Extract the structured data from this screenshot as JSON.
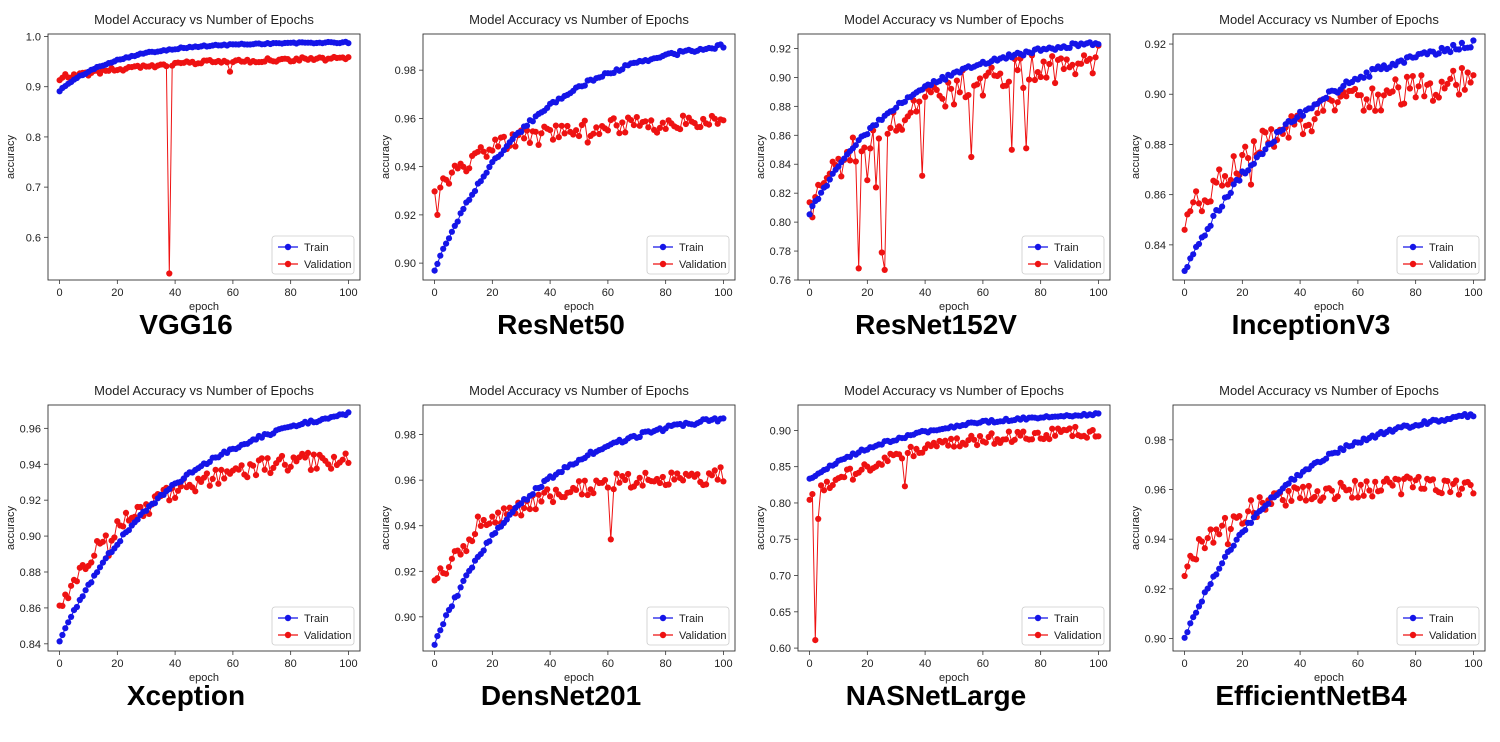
{
  "chart_data": [
    {
      "type": "line",
      "model_name": "VGG16",
      "title": "Model Accuracy vs Number of Epochs",
      "xlabel": "epoch",
      "ylabel": "accuracy",
      "xlim": [
        -4,
        104
      ],
      "ylim": [
        0.515,
        1.005
      ],
      "xticks": [
        0,
        20,
        40,
        60,
        80,
        100
      ],
      "yticks": [
        0.6,
        0.7,
        0.8,
        0.9,
        1.0
      ],
      "ytick_labels": [
        "0.6",
        "0.7",
        "0.8",
        "0.9",
        "1.0"
      ],
      "legend": [
        "Train",
        "Validation"
      ],
      "legend_position": "lower-right",
      "train": {
        "start": 0.892,
        "end": 0.988,
        "rate": 5,
        "noise": 0.0015
      },
      "validation": {
        "start": 0.915,
        "end": 0.956,
        "rate": 3,
        "noise": 0.004,
        "dips": [
          [
            38,
            0.528
          ],
          [
            59,
            0.93
          ],
          [
            2,
            0.925
          ]
        ]
      }
    },
    {
      "type": "line",
      "model_name": "ResNet50",
      "title": "Model Accuracy vs Number of Epochs",
      "xlabel": "epoch",
      "ylabel": "accuracy",
      "xlim": [
        -4,
        104
      ],
      "ylim": [
        0.893,
        0.995
      ],
      "xticks": [
        0,
        20,
        40,
        60,
        80,
        100
      ],
      "yticks": [
        0.9,
        0.92,
        0.94,
        0.96,
        0.98
      ],
      "ytick_labels": [
        "0.90",
        "0.92",
        "0.94",
        "0.96",
        "0.98"
      ],
      "legend": [
        "Train",
        "Validation"
      ],
      "legend_position": "lower-right",
      "train": {
        "start": 0.897,
        "end": 0.99,
        "rate": 3,
        "noise": 0.0008
      },
      "validation": {
        "start": 0.929,
        "end": 0.958,
        "rate": 5,
        "noise": 0.0035,
        "dips": [
          [
            1,
            0.92
          ],
          [
            36,
            0.949
          ],
          [
            53,
            0.95
          ]
        ]
      }
    },
    {
      "type": "line",
      "model_name": "ResNet152V",
      "title": "Model Accuracy vs Number of Epochs",
      "xlabel": "epoch",
      "ylabel": "accuracy",
      "xlim": [
        -4,
        104
      ],
      "ylim": [
        0.76,
        0.93
      ],
      "xticks": [
        0,
        20,
        40,
        60,
        80,
        100
      ],
      "yticks": [
        0.76,
        0.78,
        0.8,
        0.82,
        0.84,
        0.86,
        0.88,
        0.9,
        0.92
      ],
      "ytick_labels": [
        "0.76",
        "0.78",
        "0.80",
        "0.82",
        "0.84",
        "0.86",
        "0.88",
        "0.90",
        "0.92"
      ],
      "legend": [
        "Train",
        "Validation"
      ],
      "legend_position": "lower-right",
      "train": {
        "start": 0.806,
        "end": 0.924,
        "rate": 3,
        "noise": 0.0015
      },
      "validation": {
        "start": 0.81,
        "end": 0.91,
        "rate": 3,
        "noise": 0.012,
        "dips": [
          [
            17,
            0.768
          ],
          [
            26,
            0.767
          ],
          [
            25,
            0.779
          ],
          [
            20,
            0.829
          ],
          [
            23,
            0.824
          ],
          [
            39,
            0.832
          ],
          [
            56,
            0.845
          ],
          [
            70,
            0.85
          ],
          [
            75,
            0.851
          ]
        ]
      }
    },
    {
      "type": "line",
      "model_name": "InceptionV3",
      "title": "Model Accuracy vs Number of Epochs",
      "xlabel": "epoch",
      "ylabel": "accuracy",
      "xlim": [
        -4,
        104
      ],
      "ylim": [
        0.826,
        0.924
      ],
      "xticks": [
        0,
        20,
        40,
        60,
        80,
        100
      ],
      "yticks": [
        0.84,
        0.86,
        0.88,
        0.9,
        0.92
      ],
      "ytick_labels": [
        "0.84",
        "0.86",
        "0.88",
        "0.90",
        "0.92"
      ],
      "legend": [
        "Train",
        "Validation"
      ],
      "legend_position": "lower-right",
      "train": {
        "start": 0.829,
        "end": 0.92,
        "rate": 2.5,
        "noise": 0.0015
      },
      "validation": {
        "start": 0.851,
        "end": 0.905,
        "rate": 2.5,
        "noise": 0.006,
        "dips": [
          [
            8,
            0.857
          ],
          [
            23,
            0.864
          ]
        ]
      }
    },
    {
      "type": "line",
      "model_name": "Xception",
      "title": "Model Accuracy vs Number of Epochs",
      "xlabel": "epoch",
      "ylabel": "accuracy",
      "xlim": [
        -4,
        104
      ],
      "ylim": [
        0.836,
        0.973
      ],
      "xticks": [
        0,
        20,
        40,
        60,
        80,
        100
      ],
      "yticks": [
        0.84,
        0.86,
        0.88,
        0.9,
        0.92,
        0.94,
        0.96
      ],
      "ytick_labels": [
        "0.84",
        "0.86",
        "0.88",
        "0.90",
        "0.92",
        "0.94",
        "0.96"
      ],
      "legend": [
        "Train",
        "Validation"
      ],
      "legend_position": "lower-right",
      "train": {
        "start": 0.842,
        "end": 0.968,
        "rate": 2.5,
        "noise": 0.001
      },
      "validation": {
        "start": 0.862,
        "end": 0.943,
        "rate": 3.5,
        "noise": 0.005,
        "dips": [
          [
            17,
            0.889
          ]
        ]
      }
    },
    {
      "type": "line",
      "model_name": "DensNet201",
      "title": "Model Accuracy vs Number of Epochs",
      "xlabel": "epoch",
      "ylabel": "accuracy",
      "xlim": [
        -4,
        104
      ],
      "ylim": [
        0.885,
        0.993
      ],
      "xticks": [
        0,
        20,
        40,
        60,
        80,
        100
      ],
      "yticks": [
        0.9,
        0.92,
        0.94,
        0.96,
        0.98
      ],
      "ytick_labels": [
        "0.90",
        "0.92",
        "0.94",
        "0.96",
        "0.98"
      ],
      "legend": [
        "Train",
        "Validation"
      ],
      "legend_position": "lower-right",
      "train": {
        "start": 0.888,
        "end": 0.987,
        "rate": 3,
        "noise": 0.001
      },
      "validation": {
        "start": 0.915,
        "end": 0.962,
        "rate": 4,
        "noise": 0.004,
        "dips": [
          [
            61,
            0.934
          ],
          [
            15,
            0.944
          ],
          [
            20,
            0.944
          ]
        ]
      }
    },
    {
      "type": "line",
      "model_name": "NASNetLarge",
      "title": "Model Accuracy vs Number of Epochs",
      "xlabel": "epoch",
      "ylabel": "accuracy",
      "xlim": [
        -4,
        104
      ],
      "ylim": [
        0.596,
        0.935
      ],
      "xticks": [
        0,
        20,
        40,
        60,
        80,
        100
      ],
      "yticks": [
        0.6,
        0.65,
        0.7,
        0.75,
        0.8,
        0.85,
        0.9
      ],
      "ytick_labels": [
        "0.60",
        "0.65",
        "0.70",
        "0.75",
        "0.80",
        "0.85",
        "0.90"
      ],
      "legend": [
        "Train",
        "Validation"
      ],
      "legend_position": "lower-right",
      "train": {
        "start": 0.832,
        "end": 0.922,
        "rate": 3,
        "noise": 0.002
      },
      "validation": {
        "start": 0.808,
        "end": 0.898,
        "rate": 3,
        "noise": 0.008,
        "dips": [
          [
            2,
            0.611
          ],
          [
            3,
            0.778
          ],
          [
            33,
            0.823
          ],
          [
            15,
            0.832
          ]
        ]
      }
    },
    {
      "type": "line",
      "model_name": "EfficientNetB4",
      "title": "Model Accuracy vs Number of Epochs",
      "xlabel": "epoch",
      "ylabel": "accuracy",
      "xlim": [
        -4,
        104
      ],
      "ylim": [
        0.895,
        0.994
      ],
      "xticks": [
        0,
        20,
        40,
        60,
        80,
        100
      ],
      "yticks": [
        0.9,
        0.92,
        0.94,
        0.96,
        0.98
      ],
      "ytick_labels": [
        "0.90",
        "0.92",
        "0.94",
        "0.96",
        "0.98"
      ],
      "legend": [
        "Train",
        "Validation"
      ],
      "legend_position": "lower-right",
      "train": {
        "start": 0.9,
        "end": 0.99,
        "rate": 3,
        "noise": 0.0008
      },
      "validation": {
        "start": 0.929,
        "end": 0.962,
        "rate": 5,
        "noise": 0.004,
        "dips": [
          [
            15,
            0.938
          ],
          [
            1,
            0.929
          ]
        ]
      }
    }
  ]
}
